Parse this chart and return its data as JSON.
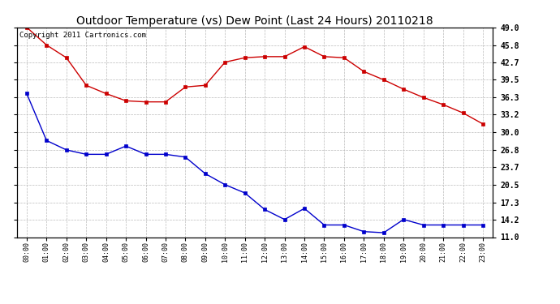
{
  "title": "Outdoor Temperature (vs) Dew Point (Last 24 Hours) 20110218",
  "copyright": "Copyright 2011 Cartronics.com",
  "x_labels": [
    "00:00",
    "01:00",
    "02:00",
    "03:00",
    "04:00",
    "05:00",
    "06:00",
    "07:00",
    "08:00",
    "09:00",
    "10:00",
    "11:00",
    "12:00",
    "13:00",
    "14:00",
    "15:00",
    "16:00",
    "17:00",
    "18:00",
    "19:00",
    "20:00",
    "21:00",
    "22:00",
    "23:00"
  ],
  "red_data": [
    49.0,
    45.8,
    43.5,
    38.5,
    37.0,
    35.7,
    35.5,
    35.5,
    38.2,
    38.5,
    42.7,
    43.5,
    43.7,
    43.7,
    45.5,
    43.7,
    43.5,
    41.0,
    39.5,
    37.8,
    36.3,
    35.0,
    33.5,
    31.5
  ],
  "blue_data": [
    37.0,
    28.5,
    26.8,
    26.0,
    26.0,
    27.5,
    26.0,
    26.0,
    25.5,
    22.5,
    20.5,
    19.0,
    16.0,
    14.2,
    16.2,
    13.2,
    13.2,
    12.0,
    11.8,
    14.2,
    13.2,
    13.2,
    13.2,
    13.2
  ],
  "red_color": "#cc0000",
  "blue_color": "#0000cc",
  "background_color": "#ffffff",
  "grid_color": "#bbbbbb",
  "y_ticks": [
    11.0,
    14.2,
    17.3,
    20.5,
    23.7,
    26.8,
    30.0,
    33.2,
    36.3,
    39.5,
    42.7,
    45.8,
    49.0
  ],
  "ylim": [
    11.0,
    49.0
  ],
  "title_fontsize": 10,
  "copyright_fontsize": 6.5
}
